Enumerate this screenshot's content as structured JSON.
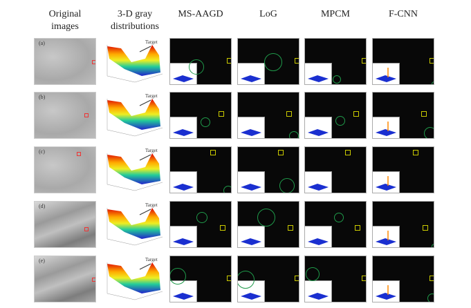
{
  "headers": [
    "Original images",
    "3-D gray distributions",
    "MS-AAGD",
    "LoG",
    "MPCM",
    "F-CNN"
  ],
  "header_lines": [
    [
      "Original",
      "images"
    ],
    [
      "3-D gray",
      "distributions"
    ],
    [
      "MS-AAGD"
    ],
    [
      "LoG"
    ],
    [
      "MPCM"
    ],
    [
      "F-CNN"
    ]
  ],
  "rows": [
    {
      "label": "(a)",
      "target_label": "Target"
    },
    {
      "label": "(b)",
      "target_label": "Target"
    },
    {
      "label": "(c)",
      "target_label": "Target"
    },
    {
      "label": "(d)",
      "target_label": "Target"
    },
    {
      "label": "(e)",
      "target_label": "Target"
    }
  ],
  "colors": {
    "target_box": "#e33333",
    "detection_box": "#cccc00",
    "detection_circle": "#1f9a4a"
  }
}
